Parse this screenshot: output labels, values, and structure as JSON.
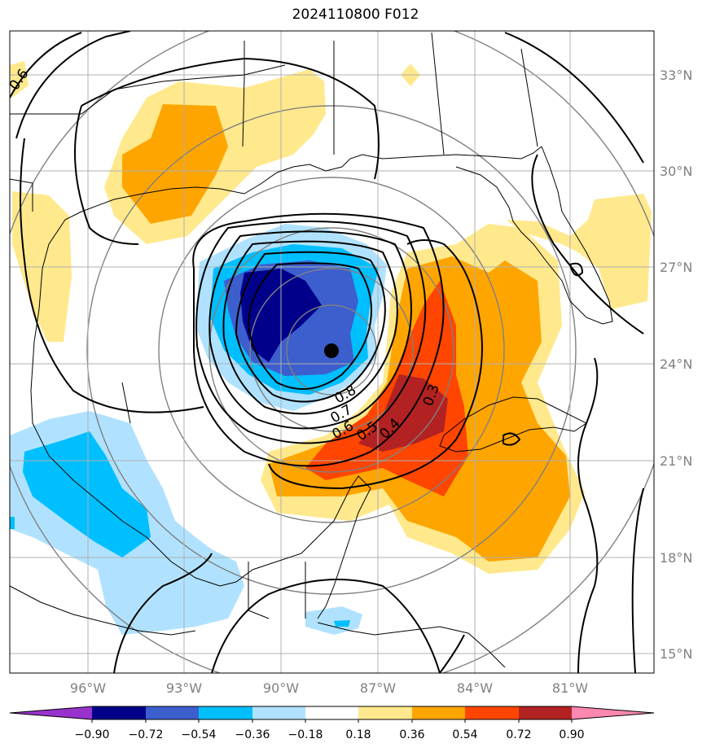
{
  "title": "2024110800 F012",
  "map": {
    "lon_labels": [
      "96°W",
      "93°W",
      "90°W",
      "87°W",
      "84°W",
      "81°W"
    ],
    "lat_labels": [
      "33°N",
      "30°N",
      "27°N",
      "24°N",
      "21°N",
      "18°N",
      "15°N"
    ],
    "contour_labels": [
      "0.8",
      "0.7",
      "0.6",
      "0.5",
      "0.4",
      "0.3",
      "0.6"
    ],
    "center_marker": "storm-center"
  },
  "colorbar": {
    "ticks": [
      "−0.90",
      "−0.72",
      "−0.54",
      "−0.36",
      "−0.18",
      "0.18",
      "0.36",
      "0.54",
      "0.72",
      "0.90"
    ],
    "colors": [
      "#9932cc",
      "#00008b",
      "#3c5fcd",
      "#00bfff",
      "#b0e2ff",
      "#ffffff",
      "#ffe98c",
      "#ffa500",
      "#ff4500",
      "#b22222",
      "#ff88b0"
    ]
  }
}
